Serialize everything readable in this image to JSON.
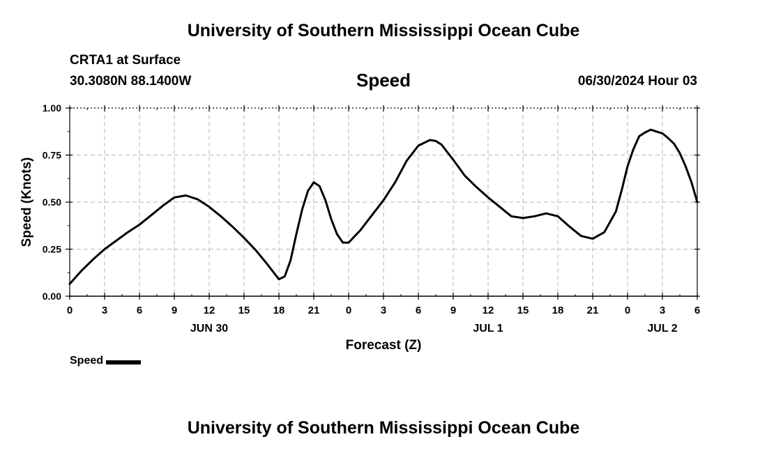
{
  "header": {
    "title": "University of Southern Mississippi Ocean Cube",
    "station": "CRTA1 at Surface",
    "coords": "30.3080N  88.1400W",
    "date_hour": "06/30/2024 Hour 03",
    "footer_title": "University of Southern Mississippi Ocean Cube"
  },
  "legend": {
    "label": "Speed"
  },
  "chart_data": {
    "type": "line",
    "title": "Speed",
    "xlabel": "Forecast (Z)",
    "ylabel": "Speed (Knots)",
    "ylim": [
      0,
      1
    ],
    "xlim": [
      0,
      54
    ],
    "y_ticks": [
      "0.00",
      "0.25",
      "0.50",
      "0.75",
      "1.00"
    ],
    "x_ticks": [
      "0",
      "3",
      "6",
      "9",
      "12",
      "15",
      "18",
      "21",
      "0",
      "3",
      "6",
      "9",
      "12",
      "15",
      "18",
      "21",
      "0",
      "3",
      "6"
    ],
    "day_labels": [
      {
        "label": "JUN 30",
        "x": 12
      },
      {
        "label": "JUL 1",
        "x": 36
      },
      {
        "label": "JUL 2",
        "x": 51
      }
    ],
    "grid": true,
    "line_color": "#000000",
    "series": [
      {
        "name": "Speed",
        "x": [
          0,
          1,
          2,
          3,
          4,
          5,
          6,
          7,
          8,
          9,
          10,
          11,
          12,
          13,
          14,
          15,
          16,
          17,
          18,
          18.5,
          19,
          19.5,
          20,
          20.5,
          21,
          21.5,
          22,
          22.5,
          23,
          23.5,
          24,
          25,
          26,
          27,
          28,
          29,
          30,
          31,
          31.5,
          32,
          33,
          34,
          35,
          36,
          37,
          38,
          39,
          40,
          41,
          42,
          43,
          44,
          45,
          46,
          47,
          47.5,
          48,
          48.5,
          49,
          49.5,
          50,
          50.5,
          51,
          51.5,
          52,
          52.5,
          53,
          53.5,
          54
        ],
        "values": [
          0.065,
          0.135,
          0.195,
          0.25,
          0.295,
          0.34,
          0.38,
          0.43,
          0.48,
          0.525,
          0.535,
          0.515,
          0.475,
          0.425,
          0.37,
          0.31,
          0.245,
          0.17,
          0.09,
          0.105,
          0.19,
          0.33,
          0.46,
          0.56,
          0.605,
          0.585,
          0.51,
          0.41,
          0.33,
          0.285,
          0.285,
          0.35,
          0.43,
          0.51,
          0.605,
          0.72,
          0.8,
          0.83,
          0.825,
          0.805,
          0.725,
          0.64,
          0.58,
          0.525,
          0.475,
          0.425,
          0.415,
          0.425,
          0.44,
          0.425,
          0.37,
          0.32,
          0.305,
          0.34,
          0.45,
          0.565,
          0.69,
          0.78,
          0.85,
          0.87,
          0.885,
          0.875,
          0.865,
          0.84,
          0.81,
          0.76,
          0.69,
          0.605,
          0.5
        ]
      }
    ]
  }
}
